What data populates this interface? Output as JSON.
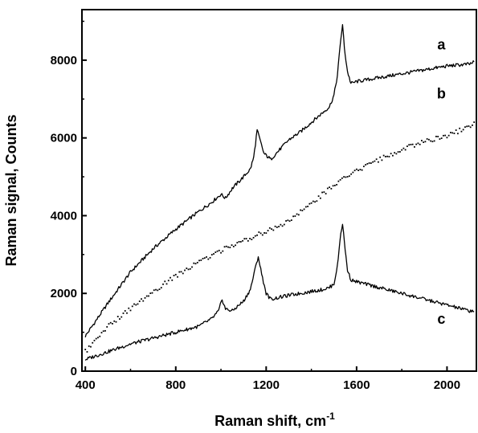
{
  "chart_data": {
    "type": "line",
    "xlabel": "Raman shift, cm",
    "xlabel_superscript": "-1",
    "ylabel": "Raman signal, Counts",
    "xlim": [
      385,
      2130
    ],
    "ylim": [
      0,
      9300
    ],
    "x_ticks": [
      400,
      800,
      1200,
      1600,
      2000
    ],
    "y_ticks": [
      0,
      2000,
      4000,
      6000,
      8000
    ],
    "grid": false,
    "series": [
      {
        "name": "a",
        "style": "solid",
        "x": [
          400,
          500,
          600,
          700,
          800,
          900,
          960,
          1000,
          1020,
          1050,
          1100,
          1130,
          1145,
          1160,
          1175,
          1190,
          1220,
          1260,
          1300,
          1350,
          1400,
          1450,
          1480,
          1500,
          1515,
          1530,
          1538,
          1546,
          1560,
          1575,
          1600,
          1700,
          1800,
          1900,
          2000,
          2100,
          2120
        ],
        "y": [
          900,
          1750,
          2550,
          3150,
          3650,
          4100,
          4350,
          4550,
          4450,
          4700,
          5000,
          5200,
          5500,
          6200,
          5900,
          5600,
          5450,
          5700,
          5950,
          6150,
          6400,
          6650,
          6800,
          7100,
          7600,
          8550,
          8900,
          8300,
          7700,
          7400,
          7450,
          7550,
          7650,
          7750,
          7850,
          7900,
          7950
        ]
      },
      {
        "name": "b",
        "style": "dotted",
        "x": [
          400,
          500,
          600,
          700,
          800,
          900,
          1000,
          1100,
          1200,
          1300,
          1400,
          1500,
          1600,
          1700,
          1800,
          1900,
          2000,
          2100,
          2120
        ],
        "y": [
          500,
          1150,
          1600,
          2050,
          2450,
          2800,
          3100,
          3350,
          3600,
          3850,
          4300,
          4800,
          5150,
          5450,
          5700,
          5900,
          6050,
          6300,
          6400
        ]
      },
      {
        "name": "c",
        "style": "solid",
        "x": [
          400,
          500,
          600,
          700,
          800,
          900,
          960,
          990,
          1005,
          1020,
          1050,
          1100,
          1130,
          1150,
          1165,
          1180,
          1200,
          1220,
          1260,
          1300,
          1350,
          1400,
          1450,
          1480,
          1500,
          1515,
          1530,
          1538,
          1546,
          1560,
          1575,
          1600,
          1700,
          1800,
          1900,
          2000,
          2100,
          2120
        ],
        "y": [
          300,
          500,
          700,
          850,
          1000,
          1150,
          1350,
          1550,
          1850,
          1600,
          1550,
          1800,
          2100,
          2600,
          2950,
          2500,
          2000,
          1850,
          1900,
          1950,
          2000,
          2050,
          2100,
          2150,
          2250,
          2700,
          3550,
          3800,
          3300,
          2600,
          2350,
          2300,
          2150,
          2000,
          1850,
          1700,
          1550,
          1550
        ]
      }
    ]
  }
}
